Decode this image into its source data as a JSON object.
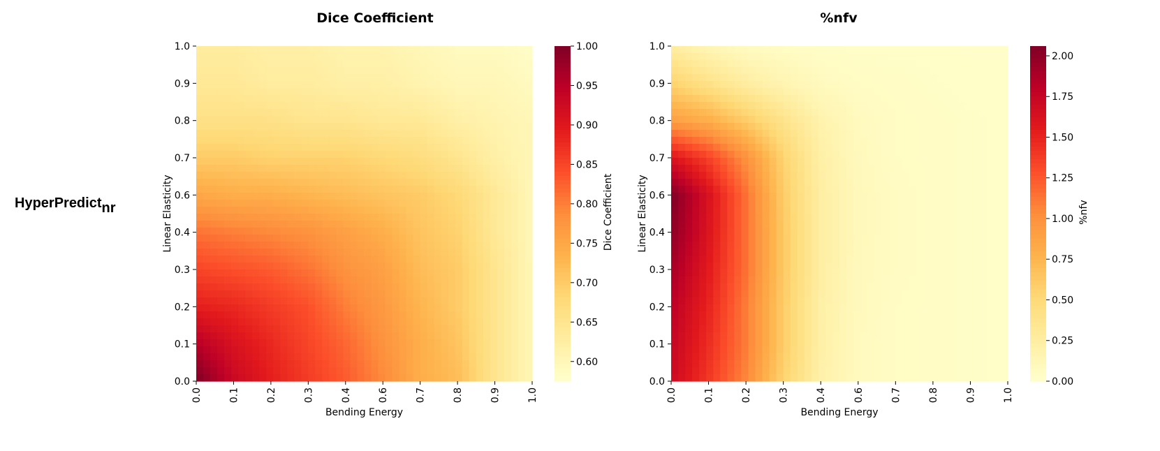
{
  "row_label": {
    "main": "HyperPredict",
    "sub": "nr"
  },
  "chart_data": [
    {
      "type": "heatmap",
      "title": "Dice Coefficient",
      "xlabel": "Bending Energy",
      "ylabel": "Linear Elasticity",
      "x_ticks": [
        "0.0",
        "0.1",
        "0.2",
        "0.3",
        "0.4",
        "0.6",
        "0.7",
        "0.8",
        "0.9",
        "1.0"
      ],
      "y_ticks": [
        "0.0",
        "0.1",
        "0.2",
        "0.3",
        "0.4",
        "0.6",
        "0.7",
        "0.8",
        "0.9",
        "1.0"
      ],
      "colorbar": {
        "label": "Dice Coefficient",
        "range": [
          0.575,
          1.0
        ],
        "ticks": [
          "0.60",
          "0.65",
          "0.70",
          "0.75",
          "0.80",
          "0.85",
          "0.90",
          "0.95",
          "1.00"
        ],
        "tick_values": [
          0.6,
          0.65,
          0.7,
          0.75,
          0.8,
          0.85,
          0.9,
          0.95,
          1.0
        ]
      },
      "colormap": "YlOrRd",
      "colormap_stops": [
        "#ffffcc",
        "#ffeda0",
        "#fed976",
        "#feb24c",
        "#fd8d3c",
        "#fc4e2a",
        "#e31a1c",
        "#bd0026",
        "#800026"
      ],
      "grid": {
        "note": "rows bottom (Linear Elasticity 0.0) to top (1.0); columns left (Bending Energy 0.0) to right (1.0)",
        "values": [
          [
            1.0,
            0.93,
            0.89,
            0.86,
            0.83,
            0.79,
            0.74,
            0.72,
            0.65,
            0.6
          ],
          [
            0.95,
            0.91,
            0.88,
            0.85,
            0.82,
            0.78,
            0.74,
            0.71,
            0.65,
            0.6
          ],
          [
            0.89,
            0.88,
            0.86,
            0.84,
            0.8,
            0.77,
            0.73,
            0.7,
            0.65,
            0.6
          ],
          [
            0.85,
            0.84,
            0.83,
            0.81,
            0.78,
            0.76,
            0.72,
            0.7,
            0.65,
            0.6
          ],
          [
            0.81,
            0.8,
            0.79,
            0.78,
            0.76,
            0.74,
            0.71,
            0.69,
            0.64,
            0.6
          ],
          [
            0.75,
            0.74,
            0.74,
            0.73,
            0.72,
            0.71,
            0.7,
            0.68,
            0.64,
            0.6
          ],
          [
            0.7,
            0.7,
            0.69,
            0.69,
            0.69,
            0.68,
            0.67,
            0.65,
            0.62,
            0.6
          ],
          [
            0.66,
            0.66,
            0.66,
            0.65,
            0.65,
            0.64,
            0.64,
            0.62,
            0.61,
            0.6
          ],
          [
            0.64,
            0.64,
            0.63,
            0.63,
            0.62,
            0.62,
            0.61,
            0.6,
            0.6,
            0.59
          ],
          [
            0.63,
            0.63,
            0.62,
            0.62,
            0.61,
            0.61,
            0.6,
            0.59,
            0.59,
            0.58
          ]
        ]
      }
    },
    {
      "type": "heatmap",
      "title": "%nfv",
      "xlabel": "Bending Energy",
      "ylabel": "Linear Elasticity",
      "x_ticks": [
        "0.0",
        "0.1",
        "0.2",
        "0.3",
        "0.4",
        "0.6",
        "0.7",
        "0.8",
        "0.9",
        "1.0"
      ],
      "y_ticks": [
        "0.0",
        "0.1",
        "0.2",
        "0.3",
        "0.4",
        "0.6",
        "0.7",
        "0.8",
        "0.9",
        "1.0"
      ],
      "colorbar": {
        "label": "%nfv",
        "range": [
          0.0,
          2.06
        ],
        "ticks": [
          "0.00",
          "0.25",
          "0.50",
          "0.75",
          "1.00",
          "1.25",
          "1.50",
          "1.75",
          "2.00"
        ],
        "tick_values": [
          0.0,
          0.25,
          0.5,
          0.75,
          1.0,
          1.25,
          1.5,
          1.75,
          2.0
        ]
      },
      "colormap": "YlOrRd",
      "colormap_stops": [
        "#ffffcc",
        "#ffeda0",
        "#fed976",
        "#feb24c",
        "#fd8d3c",
        "#fc4e2a",
        "#e31a1c",
        "#bd0026",
        "#800026"
      ],
      "grid": {
        "note": "rows bottom (Linear Elasticity 0.0) to top (1.0); columns left (Bending Energy 0.0) to right (1.0)",
        "values": [
          [
            1.7,
            1.4,
            1.05,
            0.55,
            0.2,
            0.08,
            0.05,
            0.04,
            0.03,
            0.02
          ],
          [
            1.75,
            1.45,
            1.1,
            0.6,
            0.22,
            0.08,
            0.05,
            0.04,
            0.03,
            0.02
          ],
          [
            1.8,
            1.5,
            1.1,
            0.6,
            0.22,
            0.09,
            0.05,
            0.04,
            0.03,
            0.02
          ],
          [
            1.9,
            1.55,
            1.15,
            0.62,
            0.24,
            0.09,
            0.06,
            0.04,
            0.03,
            0.02
          ],
          [
            2.0,
            1.6,
            1.15,
            0.62,
            0.24,
            0.1,
            0.06,
            0.04,
            0.03,
            0.02
          ],
          [
            2.06,
            1.62,
            1.15,
            0.6,
            0.24,
            0.1,
            0.06,
            0.04,
            0.03,
            0.02
          ],
          [
            1.6,
            1.35,
            1.0,
            0.55,
            0.22,
            0.09,
            0.05,
            0.04,
            0.03,
            0.02
          ],
          [
            0.9,
            0.8,
            0.6,
            0.38,
            0.18,
            0.08,
            0.05,
            0.04,
            0.03,
            0.02
          ],
          [
            0.55,
            0.4,
            0.25,
            0.15,
            0.08,
            0.05,
            0.04,
            0.03,
            0.02,
            0.02
          ],
          [
            0.25,
            0.12,
            0.06,
            0.04,
            0.03,
            0.02,
            0.02,
            0.02,
            0.01,
            0.01
          ]
        ]
      }
    }
  ]
}
